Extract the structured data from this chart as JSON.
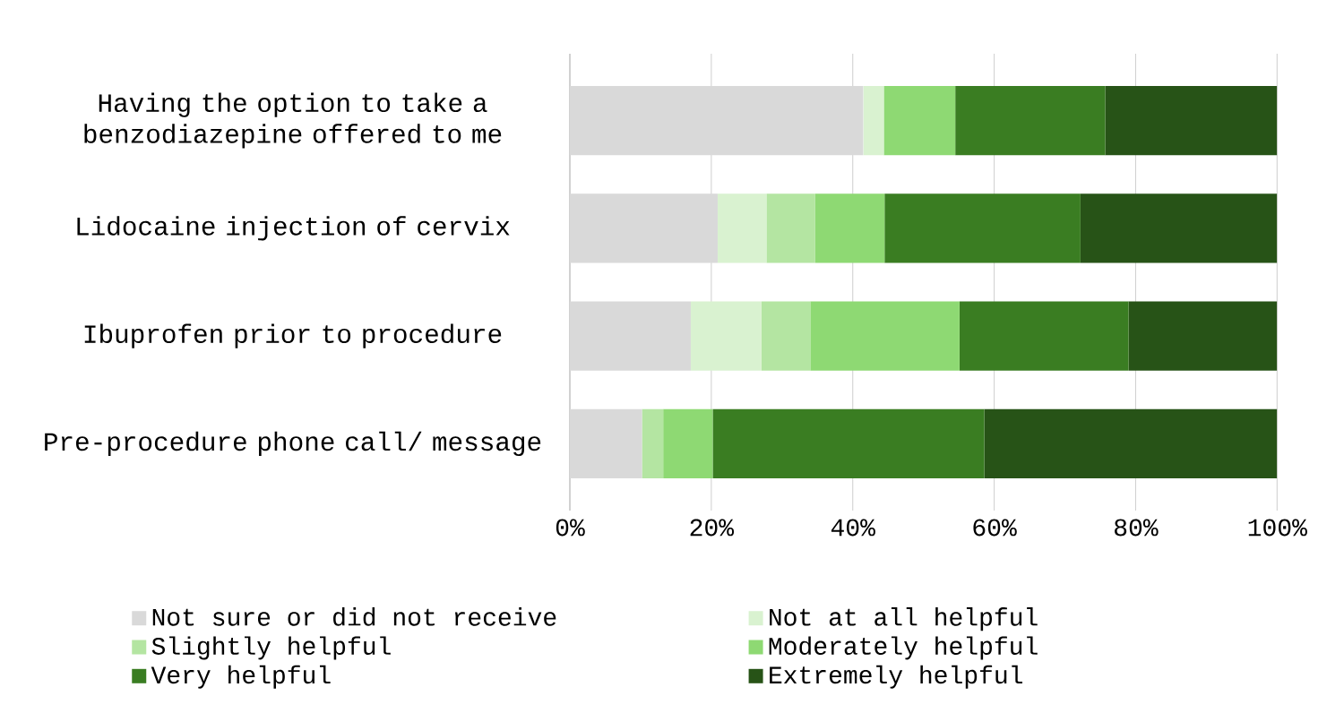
{
  "chart_data": {
    "type": "bar",
    "orientation": "horizontal",
    "stacked": true,
    "grid": "x",
    "legend": "bottom",
    "categories": [
      "Having the option to take a benzodiazepine offered to me",
      "Lidocaine injection of cervix",
      "Ibuprofen prior to procedure",
      "Pre-procedure phone call/ message"
    ],
    "series": [
      {
        "name": "Not sure or did not receive",
        "color": "#d9d9d9",
        "values": [
          41.5,
          20.9,
          17.1,
          10.2
        ]
      },
      {
        "name": "Not at all helpful",
        "color": "#d9f2d0",
        "values": [
          2.9,
          6.9,
          10.0,
          0
        ]
      },
      {
        "name": "Slightly helpful",
        "color": "#b4e5a2",
        "values": [
          0,
          6.9,
          6.9,
          3.0
        ]
      },
      {
        "name": "Moderately helpful",
        "color": "#8ed973",
        "values": [
          10.1,
          9.8,
          21.1,
          7.0
        ]
      },
      {
        "name": "Very helpful",
        "color": "#3a7d22",
        "values": [
          21.2,
          27.7,
          23.9,
          38.4
        ]
      },
      {
        "name": "Extremely helpful",
        "color": "#275317",
        "values": [
          24.3,
          27.8,
          21.0,
          41.4
        ]
      }
    ],
    "xlim": [
      0,
      100
    ],
    "xticks": [
      {
        "value": 0,
        "label": "0%"
      },
      {
        "value": 20,
        "label": "20%"
      },
      {
        "value": 40,
        "label": "40%"
      },
      {
        "value": 60,
        "label": "60%"
      },
      {
        "value": 80,
        "label": "80%"
      },
      {
        "value": 100,
        "label": "100%"
      }
    ]
  }
}
